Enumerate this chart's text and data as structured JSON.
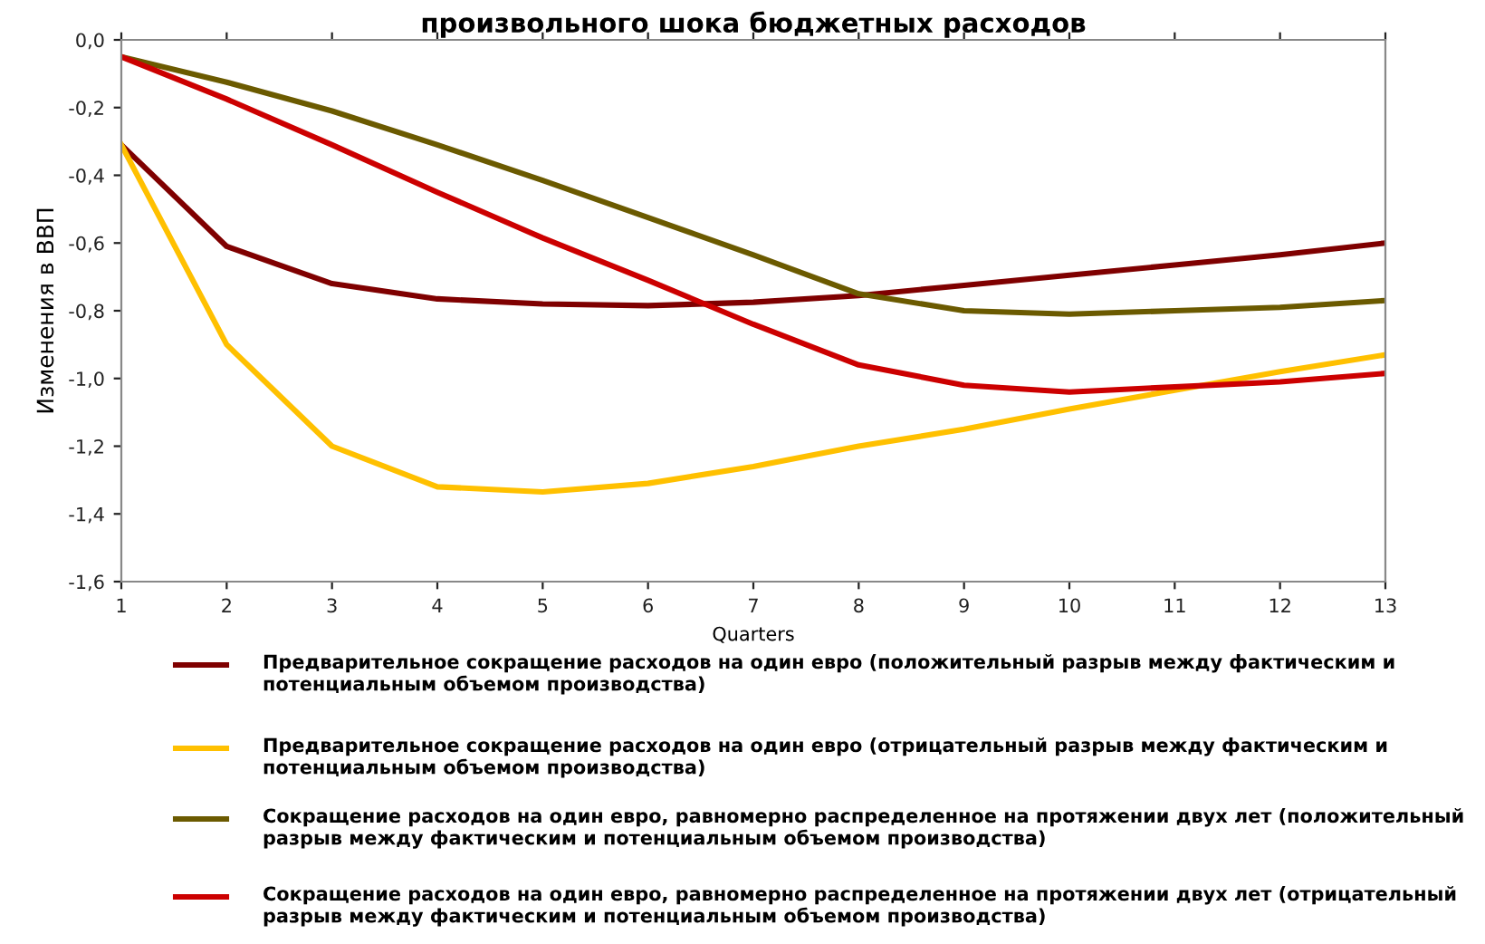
{
  "chart_data": {
    "type": "line",
    "title": "произвольного шока бюджетных расходов",
    "xlabel": "Quarters",
    "ylabel": "Изменения в ВВП",
    "x": [
      1,
      2,
      3,
      4,
      5,
      6,
      7,
      8,
      9,
      10,
      11,
      12,
      13
    ],
    "series": [
      {
        "name": "Предварительное сокращение расходов на один евро (положительный разрыв между фактическим и потенциальным объемом производства)",
        "color": "#7f0000",
        "values": [
          -0.31,
          -0.61,
          -0.72,
          -0.765,
          -0.78,
          -0.785,
          -0.775,
          -0.755,
          -0.725,
          -0.695,
          -0.665,
          -0.635,
          -0.6
        ]
      },
      {
        "name": "Предварительное сокращение расходов на один евро (отрицательный разрыв между фактическим и потенциальным объемом производства)",
        "color": "#ffc000",
        "values": [
          -0.31,
          -0.9,
          -1.2,
          -1.32,
          -1.335,
          -1.31,
          -1.26,
          -1.2,
          -1.15,
          -1.09,
          -1.035,
          -0.98,
          -0.93
        ]
      },
      {
        "name": "Сокращение расходов на один евро, равномерно распределенное на протяжении двух лет (положительный разрыв между фактическим и потенциальным объемом производства)",
        "color": "#6b5a00",
        "values": [
          -0.05,
          -0.125,
          -0.21,
          -0.31,
          -0.415,
          -0.525,
          -0.635,
          -0.75,
          -0.8,
          -0.81,
          -0.8,
          -0.79,
          -0.77
        ]
      },
      {
        "name": "Сокращение расходов на один евро, равномерно распределенное на протяжении двух лет (отрицательный разрыв между фактическим и потенциальным объемом производства)",
        "color": "#cc0000",
        "values": [
          -0.05,
          -0.175,
          -0.31,
          -0.45,
          -0.585,
          -0.71,
          -0.84,
          -0.96,
          -1.02,
          -1.04,
          -1.025,
          -1.01,
          -0.985
        ]
      }
    ],
    "xlim": [
      1,
      13
    ],
    "xticks": [
      1,
      2,
      3,
      4,
      5,
      6,
      7,
      8,
      9,
      10,
      11,
      12,
      13
    ],
    "ylim": [
      -1.6,
      0
    ],
    "yticks": [
      {
        "value": -1.6,
        "label": "-1,6"
      },
      {
        "value": -1.4,
        "label": "-1,4"
      },
      {
        "value": -1.2,
        "label": "-1,2"
      },
      {
        "value": -1.0,
        "label": "-1,0"
      },
      {
        "value": -0.8,
        "label": "-0,8"
      },
      {
        "value": -0.6,
        "label": "-0,6"
      },
      {
        "value": -0.4,
        "label": "-0,4"
      },
      {
        "value": -0.2,
        "label": "-0,2"
      },
      {
        "value": 0,
        "label": "0,0"
      }
    ],
    "grid": false,
    "legend": "bottom",
    "marker": "none",
    "line_style": "solid"
  }
}
